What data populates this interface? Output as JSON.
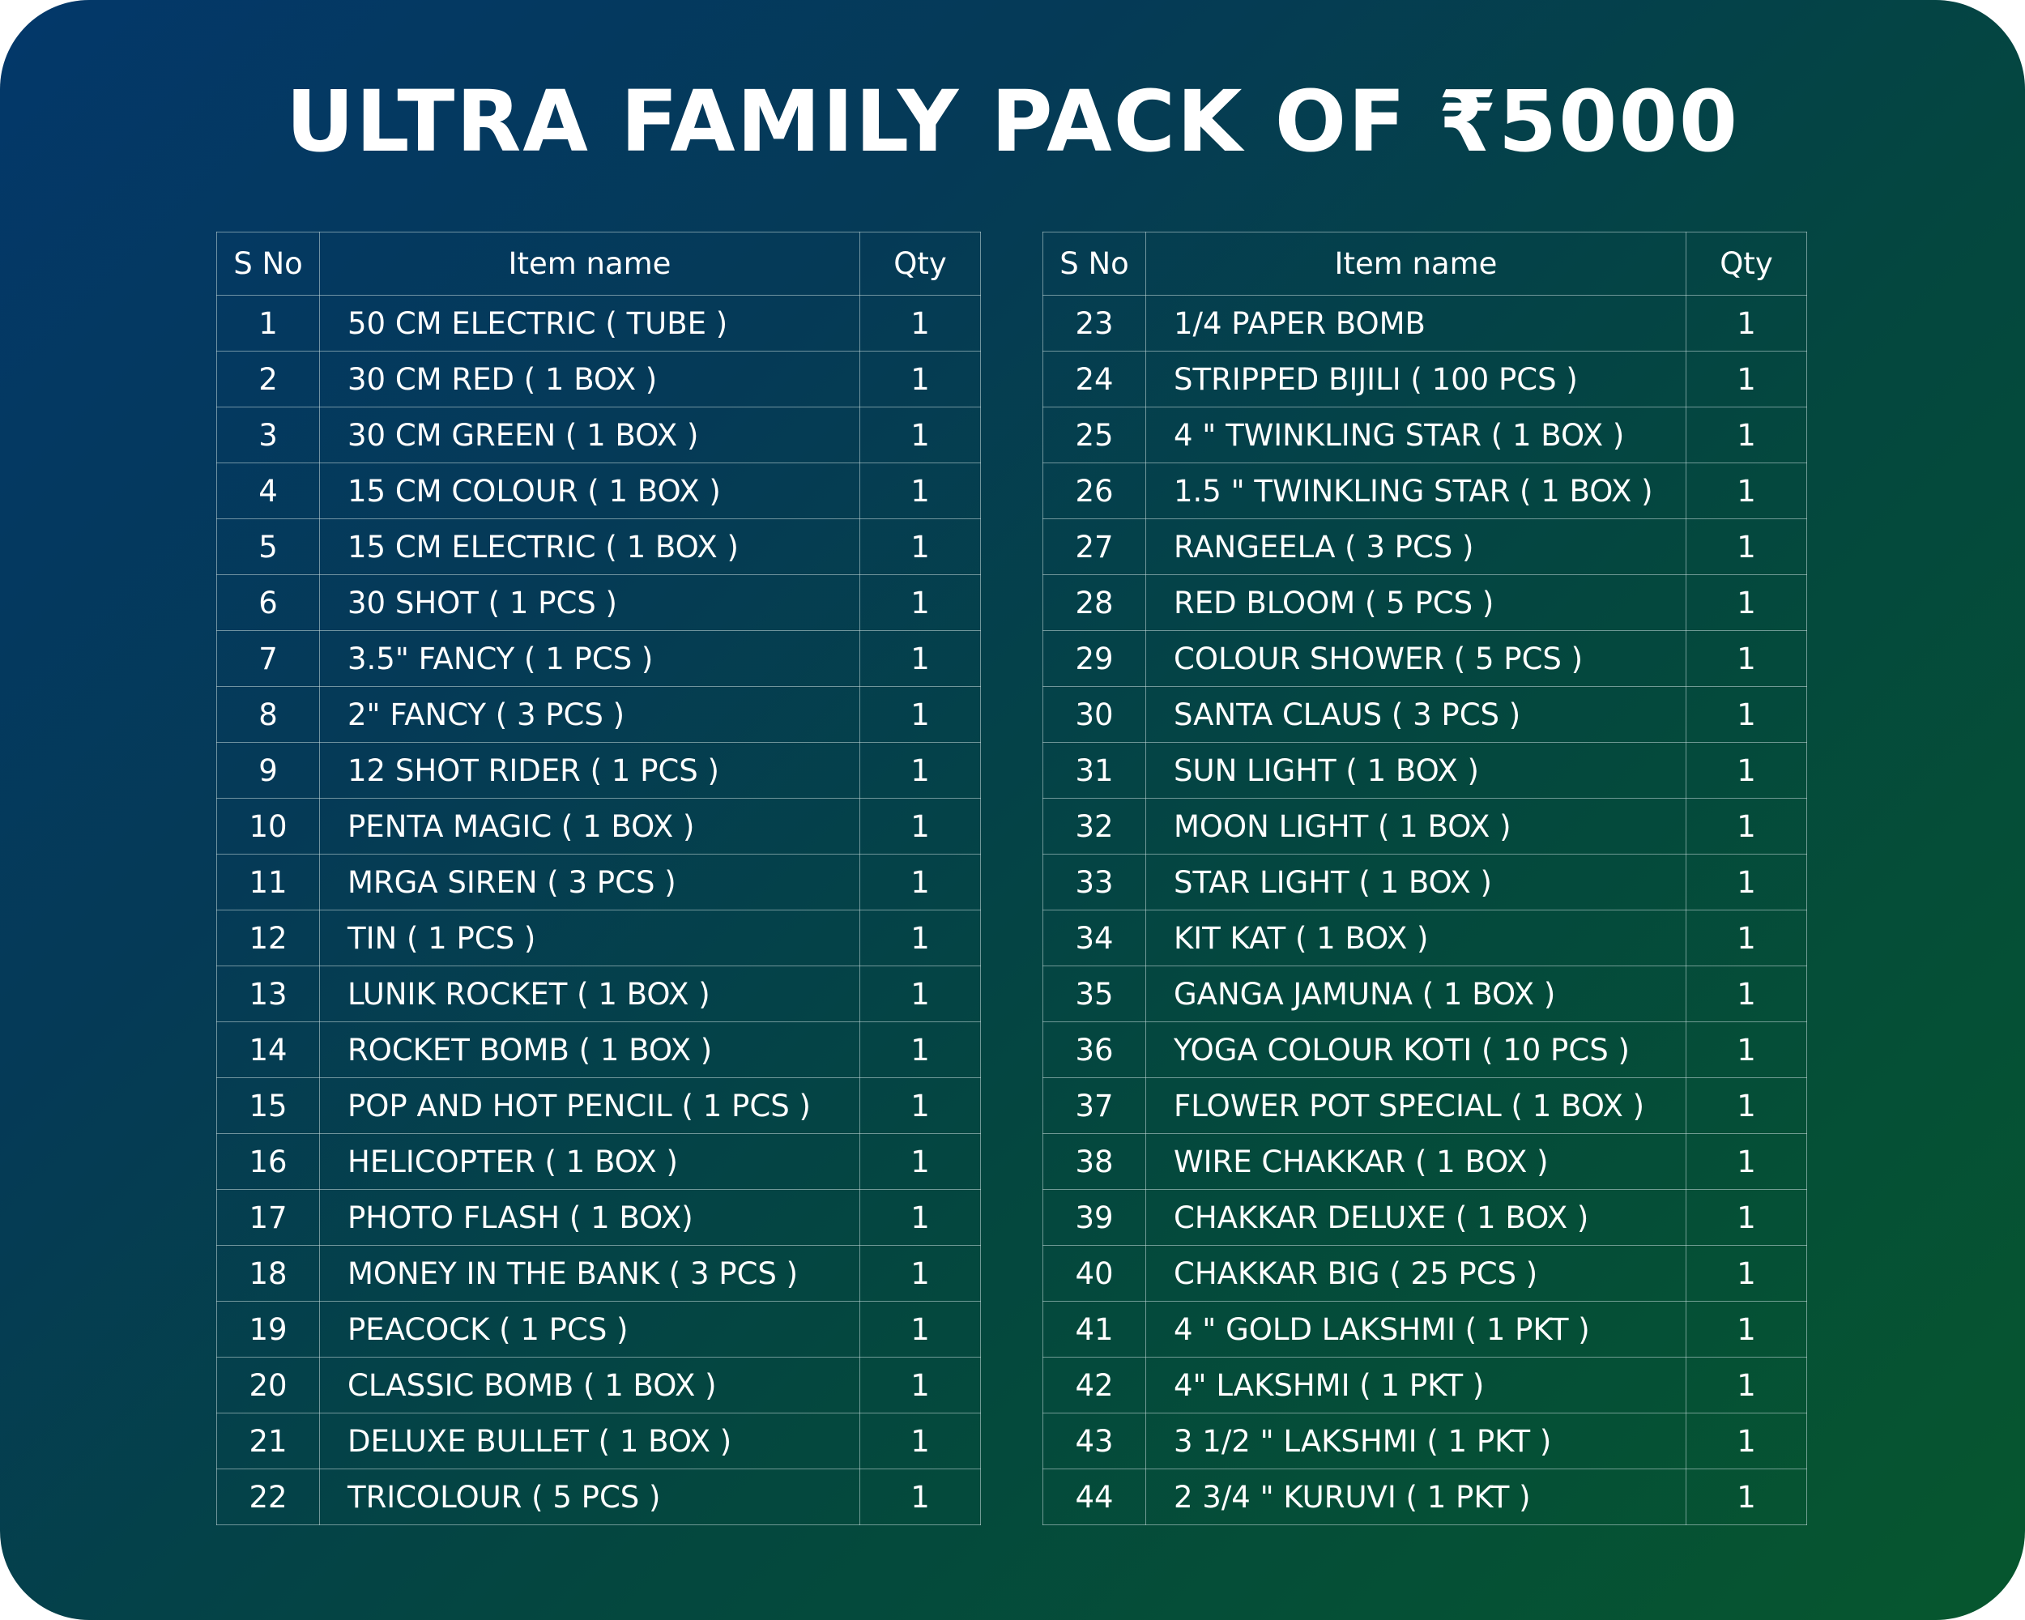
{
  "title": "ULTRA FAMILY PACK OF ₹5000",
  "headers": {
    "sno": "S No",
    "item": "Item name",
    "qty": "Qty"
  },
  "left_table": [
    {
      "sno": "1",
      "item": "50 CM ELECTRIC ( TUBE )",
      "qty": "1"
    },
    {
      "sno": "2",
      "item": "30 CM RED ( 1 BOX )",
      "qty": "1"
    },
    {
      "sno": "3",
      "item": "30 CM GREEN ( 1 BOX )",
      "qty": "1"
    },
    {
      "sno": "4",
      "item": "15 CM COLOUR  ( 1 BOX )",
      "qty": "1"
    },
    {
      "sno": "5",
      "item": "15 CM ELECTRIC ( 1 BOX )",
      "qty": "1"
    },
    {
      "sno": "6",
      "item": "30 SHOT  ( 1 PCS )",
      "qty": "1"
    },
    {
      "sno": "7",
      "item": "3.5\" FANCY ( 1 PCS )",
      "qty": "1"
    },
    {
      "sno": "8",
      "item": "2\" FANCY ( 3 PCS )",
      "qty": "1"
    },
    {
      "sno": "9",
      "item": "12 SHOT RIDER ( 1 PCS )",
      "qty": "1"
    },
    {
      "sno": "10",
      "item": "PENTA MAGIC ( 1 BOX )",
      "qty": "1"
    },
    {
      "sno": "11",
      "item": "MRGA SIREN ( 3 PCS )",
      "qty": "1"
    },
    {
      "sno": "12",
      "item": "TIN ( 1 PCS )",
      "qty": "1"
    },
    {
      "sno": "13",
      "item": "LUNIK ROCKET ( 1 BOX )",
      "qty": "1"
    },
    {
      "sno": "14",
      "item": "ROCKET BOMB ( 1 BOX )",
      "qty": "1"
    },
    {
      "sno": "15",
      "item": "POP AND HOT PENCIL ( 1 PCS )",
      "qty": "1"
    },
    {
      "sno": "16",
      "item": "HELICOPTER ( 1 BOX )",
      "qty": "1"
    },
    {
      "sno": "17",
      "item": "PHOTO FLASH ( 1 BOX)",
      "qty": "1"
    },
    {
      "sno": "18",
      "item": "MONEY IN THE BANK ( 3 PCS )",
      "qty": "1"
    },
    {
      "sno": "19",
      "item": "PEACOCK ( 1 PCS )",
      "qty": "1"
    },
    {
      "sno": "20",
      "item": "CLASSIC BOMB ( 1 BOX )",
      "qty": "1"
    },
    {
      "sno": "21",
      "item": "DELUXE BULLET ( 1 BOX )",
      "qty": "1"
    },
    {
      "sno": "22",
      "item": "TRICOLOUR ( 5 PCS )",
      "qty": "1"
    }
  ],
  "right_table": [
    {
      "sno": "23",
      "item": "1/4 PAPER BOMB",
      "qty": "1"
    },
    {
      "sno": "24",
      "item": "STRIPPED BIJILI ( 100 PCS )",
      "qty": "1"
    },
    {
      "sno": "25",
      "item": "4 \" TWINKLING STAR ( 1 BOX )",
      "qty": "1"
    },
    {
      "sno": "26",
      "item": "1.5 \" TWINKLING STAR ( 1 BOX )",
      "qty": "1"
    },
    {
      "sno": "27",
      "item": "RANGEELA ( 3 PCS )",
      "qty": "1"
    },
    {
      "sno": "28",
      "item": "RED BLOOM ( 5 PCS )",
      "qty": "1"
    },
    {
      "sno": "29",
      "item": "COLOUR SHOWER ( 5 PCS )",
      "qty": "1"
    },
    {
      "sno": "30",
      "item": "SANTA CLAUS ( 3 PCS )",
      "qty": "1"
    },
    {
      "sno": "31",
      "item": "SUN LIGHT ( 1 BOX )",
      "qty": "1"
    },
    {
      "sno": "32",
      "item": "MOON LIGHT ( 1 BOX )",
      "qty": "1"
    },
    {
      "sno": "33",
      "item": "STAR LIGHT ( 1 BOX )",
      "qty": "1"
    },
    {
      "sno": "34",
      "item": "KIT KAT ( 1 BOX )",
      "qty": "1"
    },
    {
      "sno": "35",
      "item": "GANGA JAMUNA ( 1 BOX )",
      "qty": "1"
    },
    {
      "sno": "36",
      "item": "YOGA COLOUR KOTI ( 10 PCS )",
      "qty": "1"
    },
    {
      "sno": "37",
      "item": "FLOWER POT SPECIAL  ( 1 BOX )",
      "qty": "1"
    },
    {
      "sno": "38",
      "item": "WIRE CHAKKAR ( 1 BOX )",
      "qty": "1"
    },
    {
      "sno": "39",
      "item": "CHAKKAR DELUXE ( 1 BOX )",
      "qty": "1"
    },
    {
      "sno": "40",
      "item": "CHAKKAR BIG ( 25 PCS )",
      "qty": "1"
    },
    {
      "sno": "41",
      "item": "4 \" GOLD LAKSHMI ( 1 PKT )",
      "qty": "1"
    },
    {
      "sno": "42",
      "item": "4\" LAKSHMI ( 1 PKT )",
      "qty": "1"
    },
    {
      "sno": "43",
      "item": "3 1/2 \" LAKSHMI ( 1 PKT )",
      "qty": "1"
    },
    {
      "sno": "44",
      "item": "2 3/4 \" KURUVI  ( 1 PKT )",
      "qty": "1"
    }
  ]
}
